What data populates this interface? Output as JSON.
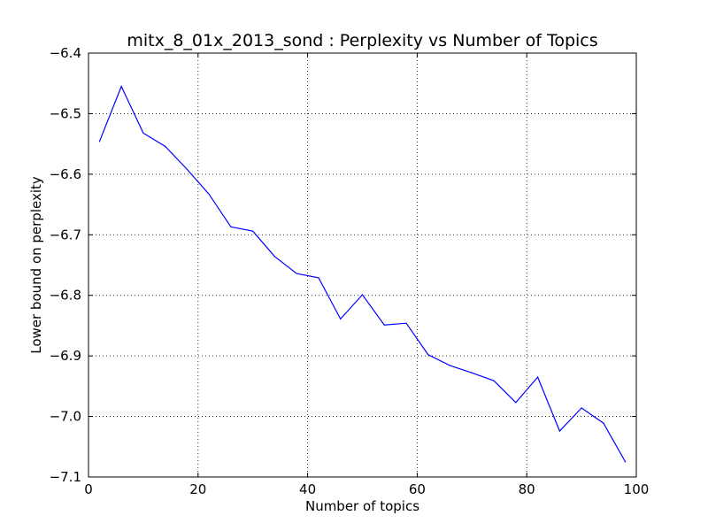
{
  "chart_data": {
    "type": "line",
    "title": "mitx_8_01x_2013_sond : Perplexity vs Number of Topics",
    "xlabel": "Number of topics",
    "ylabel": "Lower bound on perplexity",
    "xlim": [
      0,
      100
    ],
    "ylim": [
      -7.1,
      -6.4
    ],
    "xticks": [
      0,
      20,
      40,
      60,
      80,
      100
    ],
    "xtick_labels": [
      "0",
      "20",
      "40",
      "60",
      "80",
      "100"
    ],
    "yticks": [
      -7.1,
      -7.0,
      -6.9,
      -6.8,
      -6.7,
      -6.6,
      -6.5,
      -6.4
    ],
    "ytick_labels": [
      "−7.1",
      "−7.0",
      "−6.9",
      "−6.8",
      "−6.7",
      "−6.6",
      "−6.5",
      "−6.4"
    ],
    "grid": true,
    "legend": "none",
    "series": [
      {
        "color": "#0000ff",
        "x": [
          2,
          6,
          10,
          14,
          18,
          22,
          26,
          30,
          34,
          38,
          42,
          46,
          50,
          54,
          58,
          62,
          66,
          70,
          74,
          78,
          82,
          86,
          90,
          94,
          98
        ],
        "y": [
          -6.546,
          -6.455,
          -6.532,
          -6.554,
          -6.592,
          -6.633,
          -6.687,
          -6.694,
          -6.736,
          -6.764,
          -6.771,
          -6.839,
          -6.799,
          -6.849,
          -6.846,
          -6.898,
          -6.916,
          -6.928,
          -6.941,
          -6.977,
          -6.935,
          -7.024,
          -6.986,
          -7.011,
          -7.075
        ]
      }
    ]
  }
}
